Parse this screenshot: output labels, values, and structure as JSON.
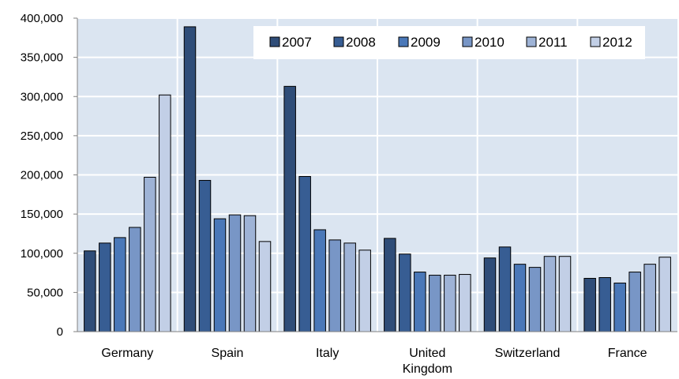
{
  "chart_data": {
    "type": "bar",
    "categories": [
      [
        "Germany"
      ],
      [
        "Spain"
      ],
      [
        "Italy"
      ],
      [
        "United",
        "Kingdom"
      ],
      [
        "Switzerland"
      ],
      [
        "France"
      ]
    ],
    "series": [
      {
        "name": "2007",
        "color": "#2f4d78",
        "values": [
          103000,
          389000,
          313000,
          119000,
          94000,
          68000
        ]
      },
      {
        "name": "2008",
        "color": "#375d93",
        "values": [
          113000,
          193000,
          198000,
          99000,
          108000,
          69000
        ]
      },
      {
        "name": "2009",
        "color": "#4a78b8",
        "values": [
          120000,
          144000,
          130000,
          76000,
          86000,
          62000
        ]
      },
      {
        "name": "2010",
        "color": "#7896c6",
        "values": [
          133000,
          149000,
          117000,
          72000,
          82000,
          76000
        ]
      },
      {
        "name": "2011",
        "color": "#9eb3d6",
        "values": [
          197000,
          148000,
          113000,
          72000,
          96000,
          86000
        ]
      },
      {
        "name": "2012",
        "color": "#c2cfe6",
        "values": [
          302000,
          115000,
          104000,
          73000,
          96000,
          95000
        ]
      }
    ],
    "yticks": [
      "0",
      "50,000",
      "100,000",
      "150,000",
      "200,000",
      "250,000",
      "300,000",
      "350,000",
      "400,000"
    ],
    "ylim": [
      0,
      400000
    ],
    "grid": true,
    "legend": "top-right",
    "title": "",
    "xlabel": "",
    "ylabel": "",
    "colors": {
      "plot_bg": "#dbe5f1",
      "grid": "#ffffff",
      "bar_stroke": "#000000"
    }
  }
}
